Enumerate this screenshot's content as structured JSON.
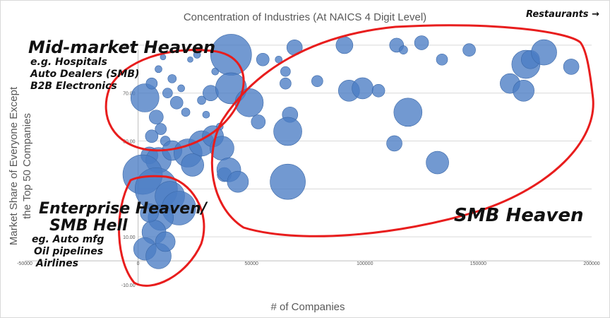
{
  "chart_data": {
    "type": "scatter",
    "title": "Concentration of Industries (At NAICS 4 Digit Level)",
    "xlabel": "# of Companies",
    "ylabel_lines": [
      "Market Share of Everyone Except",
      "the Top 50 Companies"
    ],
    "xlim": [
      -50000,
      200000
    ],
    "ylim": [
      -10,
      100
    ],
    "x_ticks": [
      "-50000",
      "0",
      "50000",
      "100000",
      "150000",
      "200000"
    ],
    "y_ticks": [
      "90.00",
      "70.00",
      "50.00",
      "10.00",
      "-10.00"
    ],
    "y_tick_values": [
      90,
      70,
      50,
      10,
      -10
    ],
    "gridlines_y": [
      90,
      70,
      50,
      30,
      10
    ],
    "colors": {
      "bubble": "#4a7cc4",
      "annotation_ring": "#e81d1d"
    },
    "bubbles": [
      {
        "x": 3000,
        "y": 68,
        "r": 20
      },
      {
        "x": 6000,
        "y": 74,
        "r": 8
      },
      {
        "x": 9000,
        "y": 80,
        "r": 5
      },
      {
        "x": 11000,
        "y": 85,
        "r": 4
      },
      {
        "x": 13000,
        "y": 70,
        "r": 7
      },
      {
        "x": 15000,
        "y": 76,
        "r": 6
      },
      {
        "x": 17000,
        "y": 66,
        "r": 9
      },
      {
        "x": 19000,
        "y": 72,
        "r": 5
      },
      {
        "x": 21000,
        "y": 62,
        "r": 6
      },
      {
        "x": 23000,
        "y": 84,
        "r": 4
      },
      {
        "x": 26000,
        "y": 86,
        "r": 5
      },
      {
        "x": 28000,
        "y": 67,
        "r": 6
      },
      {
        "x": 30000,
        "y": 61,
        "r": 5
      },
      {
        "x": 32000,
        "y": 70,
        "r": 11
      },
      {
        "x": 34000,
        "y": 79,
        "r": 5
      },
      {
        "x": 36000,
        "y": 56,
        "r": 5
      },
      {
        "x": 41000,
        "y": 86,
        "r": 29
      },
      {
        "x": 41000,
        "y": 72,
        "r": 22
      },
      {
        "x": 8000,
        "y": 60,
        "r": 10
      },
      {
        "x": 10000,
        "y": 55,
        "r": 8
      },
      {
        "x": 6000,
        "y": 52,
        "r": 9
      },
      {
        "x": 12000,
        "y": 50,
        "r": 7
      },
      {
        "x": 5000,
        "y": 44,
        "r": 12
      },
      {
        "x": 9000,
        "y": 42,
        "r": 18
      },
      {
        "x": 15000,
        "y": 46,
        "r": 14
      },
      {
        "x": 22000,
        "y": 45,
        "r": 20
      },
      {
        "x": 28000,
        "y": 49,
        "r": 18
      },
      {
        "x": 33000,
        "y": 52,
        "r": 15
      },
      {
        "x": 37000,
        "y": 47,
        "r": 17
      },
      {
        "x": 24000,
        "y": 40,
        "r": 16
      },
      {
        "x": 38000,
        "y": 36,
        "r": 10
      },
      {
        "x": 40000,
        "y": 38,
        "r": 17
      },
      {
        "x": 44000,
        "y": 33,
        "r": 15
      },
      {
        "x": 2000,
        "y": 36,
        "r": 28
      },
      {
        "x": 8000,
        "y": 30,
        "r": 30
      },
      {
        "x": 14000,
        "y": 27,
        "r": 21
      },
      {
        "x": 18000,
        "y": 22,
        "r": 24
      },
      {
        "x": 10000,
        "y": 18,
        "r": 18
      },
      {
        "x": 7000,
        "y": 12,
        "r": 17
      },
      {
        "x": 3000,
        "y": 5,
        "r": 16
      },
      {
        "x": 9000,
        "y": 2,
        "r": 18
      },
      {
        "x": 12000,
        "y": 8,
        "r": 14
      },
      {
        "x": 5000,
        "y": 20,
        "r": 13
      },
      {
        "x": 49000,
        "y": 66,
        "r": 20
      },
      {
        "x": 53000,
        "y": 58,
        "r": 10
      },
      {
        "x": 55000,
        "y": 84,
        "r": 9
      },
      {
        "x": 62000,
        "y": 84,
        "r": 5
      },
      {
        "x": 65000,
        "y": 79,
        "r": 7
      },
      {
        "x": 65000,
        "y": 74,
        "r": 8
      },
      {
        "x": 67000,
        "y": 61,
        "r": 11
      },
      {
        "x": 66000,
        "y": 54,
        "r": 20
      },
      {
        "x": 66000,
        "y": 33,
        "r": 25
      },
      {
        "x": 69000,
        "y": 89,
        "r": 11
      },
      {
        "x": 79000,
        "y": 75,
        "r": 8
      },
      {
        "x": 91000,
        "y": 90,
        "r": 12
      },
      {
        "x": 93000,
        "y": 71,
        "r": 15
      },
      {
        "x": 99000,
        "y": 72,
        "r": 15
      },
      {
        "x": 106000,
        "y": 71,
        "r": 9
      },
      {
        "x": 114000,
        "y": 90,
        "r": 10
      },
      {
        "x": 117000,
        "y": 88,
        "r": 6
      },
      {
        "x": 119000,
        "y": 62,
        "r": 20
      },
      {
        "x": 113000,
        "y": 49,
        "r": 11
      },
      {
        "x": 125000,
        "y": 91,
        "r": 10
      },
      {
        "x": 132000,
        "y": 41,
        "r": 16
      },
      {
        "x": 134000,
        "y": 84,
        "r": 8
      },
      {
        "x": 146000,
        "y": 88,
        "r": 9
      },
      {
        "x": 164000,
        "y": 74,
        "r": 14
      },
      {
        "x": 170000,
        "y": 71,
        "r": 15
      },
      {
        "x": 171000,
        "y": 82,
        "r": 20
      },
      {
        "x": 173000,
        "y": 84,
        "r": 13
      },
      {
        "x": 179000,
        "y": 87,
        "r": 18
      },
      {
        "x": 191000,
        "y": 81,
        "r": 11
      }
    ],
    "annotations": [
      {
        "id": "restaurants",
        "lines": [
          "Restaurants →"
        ]
      },
      {
        "id": "mid-market",
        "lines": [
          "Mid-market Heaven",
          "e.g. Hospitals",
          "Auto Dealers (SMB)",
          "B2B Electronics"
        ]
      },
      {
        "id": "enterprise",
        "lines": [
          "Enterprise Heaven/",
          "SMB Hell",
          "eg. Auto mfg",
          "Oil pipelines",
          "Airlines"
        ]
      },
      {
        "id": "smb",
        "lines": [
          "SMB Heaven"
        ]
      }
    ]
  }
}
